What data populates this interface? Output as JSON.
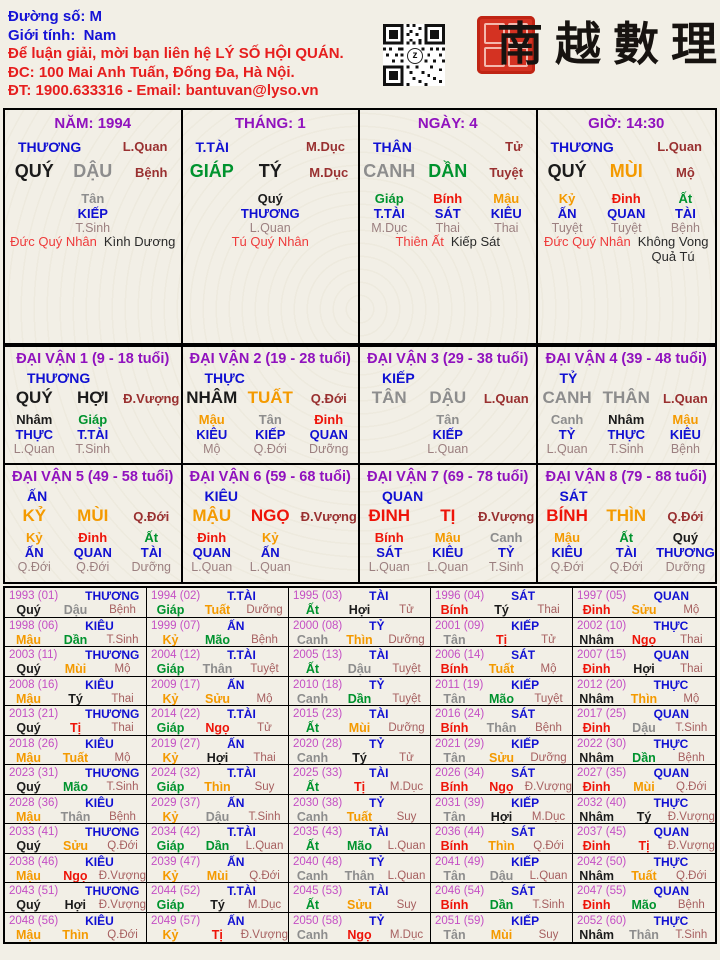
{
  "palette": {
    "black": "#1b1b1b",
    "gray": "#8d8d8d",
    "green": "#00932e",
    "red": "#ee1409",
    "orange": "#f49a00",
    "blue": "#1010d2",
    "purple": "#9012be",
    "magenta": "#c44fc4",
    "darkred": "#993030",
    "hiddenstar": "#9c8080",
    "yearstar": "#a65f5f",
    "notered": "#ee3b3b",
    "headerblue": "#1512d6",
    "headerred": "#e61e1e"
  },
  "header": {
    "duong_so_label": "Đường số:",
    "duong_so_value": "M",
    "gioi_tinh_label": "Giới tính:",
    "gioi_tinh_value": "Nam",
    "contact_line1": "Để luận giải, mời bạn liên hệ LÝ SỐ HỘI QUÁN.",
    "contact_line2": "ĐC: 100 Mai Anh Tuấn, Đống Đa, Hà Nội.",
    "contact_line3": "ĐT: 1900.633316 - Email: bantuvan@lyso.vn",
    "qr_logo": "z",
    "calligraphy": "南越數理"
  },
  "pillars": [
    {
      "title": "NĂM: 1994",
      "god": "THƯƠNG",
      "god_right": "L.Quan",
      "can": "QUÝ",
      "can_color": "black",
      "chi": "DẬU",
      "chi_color": "gray",
      "star": "Bệnh",
      "hidden": [
        {
          "can": "Tân",
          "can_color": "gray",
          "god": "KIẾP",
          "star": "T.Sinh"
        }
      ],
      "note_red": "Đức Quý Nhân",
      "note_black": "Kình Dương"
    },
    {
      "title": "THÁNG: 1",
      "god": "T.TÀI",
      "god_right": "M.Dục",
      "can": "GIÁP",
      "can_color": "green",
      "chi": "TÝ",
      "chi_color": "black",
      "star": "M.Dục",
      "hidden": [
        {
          "can": "Quý",
          "can_color": "black",
          "god": "THƯƠNG",
          "star": "L.Quan"
        }
      ],
      "note_red": "Tú Quý Nhân",
      "note_black": ""
    },
    {
      "title": "NGÀY: 4",
      "god": "THÂN",
      "god_right": "Tử",
      "can": "CANH",
      "can_color": "gray",
      "chi": "DẦN",
      "chi_color": "green",
      "star": "Tuyệt",
      "hidden": [
        {
          "can": "Giáp",
          "can_color": "green",
          "god": "T.TÀI",
          "star": "M.Dục"
        },
        {
          "can": "Bính",
          "can_color": "red",
          "god": "SÁT",
          "star": "Thai"
        },
        {
          "can": "Mậu",
          "can_color": "orange",
          "god": "KIÊU",
          "star": "Thai"
        }
      ],
      "note_red": "Thiên Ất",
      "note_black": "Kiếp Sát"
    },
    {
      "title": "GIỜ: 14:30",
      "god": "THƯƠNG",
      "god_right": "L.Quan",
      "can": "QUÝ",
      "can_color": "black",
      "chi": "MÙI",
      "chi_color": "orange",
      "star": "Mộ",
      "hidden": [
        {
          "can": "Kỷ",
          "can_color": "orange",
          "god": "ẤN",
          "star": "Tuyệt"
        },
        {
          "can": "Đinh",
          "can_color": "red",
          "god": "QUAN",
          "star": "Tuyệt"
        },
        {
          "can": "Ất",
          "can_color": "green",
          "god": "TÀI",
          "star": "Bệnh"
        }
      ],
      "note_red": "Đức Quý Nhân",
      "note_black": "Không Vong\nQuả Tú"
    }
  ],
  "daivan": [
    {
      "title": "ĐẠI VẬN 1 (9 - 18 tuổi)",
      "god": "THƯƠNG",
      "can": "QUÝ",
      "can_color": "black",
      "chi": "HỢI",
      "chi_color": "black",
      "star": "Đ.Vượng",
      "hidden": [
        {
          "can": "Nhâm",
          "can_color": "black",
          "god": "THỰC",
          "star": "L.Quan"
        },
        {
          "can": "Giáp",
          "can_color": "green",
          "god": "T.TÀI",
          "star": "T.Sinh"
        }
      ]
    },
    {
      "title": "ĐẠI VẬN 2 (19 - 28 tuổi)",
      "god": "THỰC",
      "can": "NHÂM",
      "can_color": "black",
      "chi": "TUẤT",
      "chi_color": "orange",
      "star": "Q.Đới",
      "hidden": [
        {
          "can": "Mậu",
          "can_color": "orange",
          "god": "KIÊU",
          "star": "Mộ"
        },
        {
          "can": "Tân",
          "can_color": "gray",
          "god": "KIẾP",
          "star": "Q.Đới"
        },
        {
          "can": "Đinh",
          "can_color": "red",
          "god": "QUAN",
          "star": "Dưỡng"
        }
      ]
    },
    {
      "title": "ĐẠI VẬN 3 (29 - 38 tuổi)",
      "god": "KIẾP",
      "can": "TÂN",
      "can_color": "gray",
      "chi": "DẬU",
      "chi_color": "gray",
      "star": "L.Quan",
      "hidden": [
        {
          "can": "Tân",
          "can_color": "gray",
          "god": "KIẾP",
          "star": "L.Quan"
        }
      ]
    },
    {
      "title": "ĐẠI VẬN 4 (39 - 48 tuổi)",
      "god": "TỶ",
      "can": "CANH",
      "can_color": "gray",
      "chi": "THÂN",
      "chi_color": "gray",
      "star": "L.Quan",
      "hidden": [
        {
          "can": "Canh",
          "can_color": "gray",
          "god": "TỶ",
          "star": "L.Quan"
        },
        {
          "can": "Nhâm",
          "can_color": "black",
          "god": "THỰC",
          "star": "T.Sinh"
        },
        {
          "can": "Mậu",
          "can_color": "orange",
          "god": "KIÊU",
          "star": "Bệnh"
        }
      ]
    },
    {
      "title": "ĐẠI VẬN 5 (49 - 58 tuổi)",
      "god": "ẤN",
      "can": "KỶ",
      "can_color": "orange",
      "chi": "MÙI",
      "chi_color": "orange",
      "star": "Q.Đới",
      "hidden": [
        {
          "can": "Kỷ",
          "can_color": "orange",
          "god": "ẤN",
          "star": "Q.Đới"
        },
        {
          "can": "Đinh",
          "can_color": "red",
          "god": "QUAN",
          "star": "Q.Đới"
        },
        {
          "can": "Ất",
          "can_color": "green",
          "god": "TÀI",
          "star": "Dưỡng"
        }
      ]
    },
    {
      "title": "ĐẠI VẬN 6 (59 - 68 tuổi)",
      "god": "KIÊU",
      "can": "MẬU",
      "can_color": "orange",
      "chi": "NGỌ",
      "chi_color": "red",
      "star": "Đ.Vượng",
      "hidden": [
        {
          "can": "Đinh",
          "can_color": "red",
          "god": "QUAN",
          "star": "L.Quan"
        },
        {
          "can": "Kỷ",
          "can_color": "orange",
          "god": "ẤN",
          "star": "L.Quan"
        }
      ]
    },
    {
      "title": "ĐẠI VẬN 7 (69 - 78 tuổi)",
      "god": "QUAN",
      "can": "ĐINH",
      "can_color": "red",
      "chi": "TỊ",
      "chi_color": "red",
      "star": "Đ.Vượng",
      "hidden": [
        {
          "can": "Bính",
          "can_color": "red",
          "god": "SÁT",
          "star": "L.Quan"
        },
        {
          "can": "Mậu",
          "can_color": "orange",
          "god": "KIÊU",
          "star": "L.Quan"
        },
        {
          "can": "Canh",
          "can_color": "gray",
          "god": "TỶ",
          "star": "T.Sinh"
        }
      ]
    },
    {
      "title": "ĐẠI VẬN 8 (79 - 88 tuổi)",
      "god": "SÁT",
      "can": "BÍNH",
      "can_color": "red",
      "chi": "THÌN",
      "chi_color": "orange",
      "star": "Q.Đới",
      "hidden": [
        {
          "can": "Mậu",
          "can_color": "orange",
          "god": "KIÊU",
          "star": "Q.Đới"
        },
        {
          "can": "Ất",
          "can_color": "green",
          "god": "TÀI",
          "star": "Q.Đới"
        },
        {
          "can": "Quý",
          "can_color": "black",
          "god": "THƯƠNG",
          "star": "Dưỡng"
        }
      ]
    }
  ],
  "stem_colors": {
    "Giáp": "green",
    "Ất": "green",
    "Bính": "red",
    "Đinh": "red",
    "Mậu": "orange",
    "Kỷ": "orange",
    "Canh": "gray",
    "Tân": "gray",
    "Nhâm": "black",
    "Quý": "black"
  },
  "branch_colors": {
    "Tý": "black",
    "Sửu": "orange",
    "Dần": "green",
    "Mão": "green",
    "Thìn": "orange",
    "Tị": "red",
    "Ngọ": "red",
    "Mùi": "orange",
    "Thân": "gray",
    "Dậu": "gray",
    "Tuất": "orange",
    "Hợi": "black"
  },
  "years": [
    [
      "1993 (01)",
      "THƯƠNG",
      "Quý",
      "Dậu",
      "Bệnh"
    ],
    [
      "1994 (02)",
      "T.TÀI",
      "Giáp",
      "Tuất",
      "Dưỡng"
    ],
    [
      "1995 (03)",
      "TÀI",
      "Ất",
      "Hợi",
      "Tử"
    ],
    [
      "1996 (04)",
      "SÁT",
      "Bính",
      "Tý",
      "Thai"
    ],
    [
      "1997 (05)",
      "QUAN",
      "Đinh",
      "Sửu",
      "Mộ"
    ],
    [
      "1998 (06)",
      "KIÊU",
      "Mậu",
      "Dần",
      "T.Sinh"
    ],
    [
      "1999 (07)",
      "ẤN",
      "Kỷ",
      "Mão",
      "Bệnh"
    ],
    [
      "2000 (08)",
      "TỶ",
      "Canh",
      "Thìn",
      "Dưỡng"
    ],
    [
      "2001 (09)",
      "KIẾP",
      "Tân",
      "Tị",
      "Tử"
    ],
    [
      "2002 (10)",
      "THỰC",
      "Nhâm",
      "Ngọ",
      "Thai"
    ],
    [
      "2003 (11)",
      "THƯƠNG",
      "Quý",
      "Mùi",
      "Mộ"
    ],
    [
      "2004 (12)",
      "T.TÀI",
      "Giáp",
      "Thân",
      "Tuyệt"
    ],
    [
      "2005 (13)",
      "TÀI",
      "Ất",
      "Dậu",
      "Tuyệt"
    ],
    [
      "2006 (14)",
      "SÁT",
      "Bính",
      "Tuất",
      "Mộ"
    ],
    [
      "2007 (15)",
      "QUAN",
      "Đinh",
      "Hợi",
      "Thai"
    ],
    [
      "2008 (16)",
      "KIÊU",
      "Mậu",
      "Tý",
      "Thai"
    ],
    [
      "2009 (17)",
      "ẤN",
      "Kỷ",
      "Sửu",
      "Mộ"
    ],
    [
      "2010 (18)",
      "TỶ",
      "Canh",
      "Dần",
      "Tuyệt"
    ],
    [
      "2011 (19)",
      "KIẾP",
      "Tân",
      "Mão",
      "Tuyệt"
    ],
    [
      "2012 (20)",
      "THỰC",
      "Nhâm",
      "Thìn",
      "Mộ"
    ],
    [
      "2013 (21)",
      "THƯƠNG",
      "Quý",
      "Tị",
      "Thai"
    ],
    [
      "2014 (22)",
      "T.TÀI",
      "Giáp",
      "Ngọ",
      "Tử"
    ],
    [
      "2015 (23)",
      "TÀI",
      "Ất",
      "Mùi",
      "Dưỡng"
    ],
    [
      "2016 (24)",
      "SÁT",
      "Bính",
      "Thân",
      "Bệnh"
    ],
    [
      "2017 (25)",
      "QUAN",
      "Đinh",
      "Dậu",
      "T.Sinh"
    ],
    [
      "2018 (26)",
      "KIÊU",
      "Mậu",
      "Tuất",
      "Mộ"
    ],
    [
      "2019 (27)",
      "ẤN",
      "Kỷ",
      "Hợi",
      "Thai"
    ],
    [
      "2020 (28)",
      "TỶ",
      "Canh",
      "Tý",
      "Tử"
    ],
    [
      "2021 (29)",
      "KIẾP",
      "Tân",
      "Sửu",
      "Dưỡng"
    ],
    [
      "2022 (30)",
      "THỰC",
      "Nhâm",
      "Dần",
      "Bệnh"
    ],
    [
      "2023 (31)",
      "THƯƠNG",
      "Quý",
      "Mão",
      "T.Sinh"
    ],
    [
      "2024 (32)",
      "T.TÀI",
      "Giáp",
      "Thìn",
      "Suy"
    ],
    [
      "2025 (33)",
      "TÀI",
      "Ất",
      "Tị",
      "M.Dục"
    ],
    [
      "2026 (34)",
      "SÁT",
      "Bính",
      "Ngọ",
      "Đ.Vượng"
    ],
    [
      "2027 (35)",
      "QUAN",
      "Đinh",
      "Mùi",
      "Q.Đới"
    ],
    [
      "2028 (36)",
      "KIÊU",
      "Mậu",
      "Thân",
      "Bệnh"
    ],
    [
      "2029 (37)",
      "ẤN",
      "Kỷ",
      "Dậu",
      "T.Sinh"
    ],
    [
      "2030 (38)",
      "TỶ",
      "Canh",
      "Tuất",
      "Suy"
    ],
    [
      "2031 (39)",
      "KIẾP",
      "Tân",
      "Hợi",
      "M.Dục"
    ],
    [
      "2032 (40)",
      "THỰC",
      "Nhâm",
      "Tý",
      "Đ.Vượng"
    ],
    [
      "2033 (41)",
      "THƯƠNG",
      "Quý",
      "Sửu",
      "Q.Đới"
    ],
    [
      "2034 (42)",
      "T.TÀI",
      "Giáp",
      "Dần",
      "L.Quan"
    ],
    [
      "2035 (43)",
      "TÀI",
      "Ất",
      "Mão",
      "L.Quan"
    ],
    [
      "2036 (44)",
      "SÁT",
      "Bính",
      "Thìn",
      "Q.Đới"
    ],
    [
      "2037 (45)",
      "QUAN",
      "Đinh",
      "Tị",
      "Đ.Vượng"
    ],
    [
      "2038 (46)",
      "KIÊU",
      "Mậu",
      "Ngọ",
      "Đ.Vượng"
    ],
    [
      "2039 (47)",
      "ẤN",
      "Kỷ",
      "Mùi",
      "Q.Đới"
    ],
    [
      "2040 (48)",
      "TỶ",
      "Canh",
      "Thân",
      "L.Quan"
    ],
    [
      "2041 (49)",
      "KIẾP",
      "Tân",
      "Dậu",
      "L.Quan"
    ],
    [
      "2042 (50)",
      "THỰC",
      "Nhâm",
      "Tuất",
      "Q.Đới"
    ],
    [
      "2043 (51)",
      "THƯƠNG",
      "Quý",
      "Hợi",
      "Đ.Vượng"
    ],
    [
      "2044 (52)",
      "T.TÀI",
      "Giáp",
      "Tý",
      "M.Dục"
    ],
    [
      "2045 (53)",
      "TÀI",
      "Ất",
      "Sửu",
      "Suy"
    ],
    [
      "2046 (54)",
      "SÁT",
      "Bính",
      "Dần",
      "T.Sinh"
    ],
    [
      "2047 (55)",
      "QUAN",
      "Đinh",
      "Mão",
      "Bệnh"
    ],
    [
      "2048 (56)",
      "KIÊU",
      "Mậu",
      "Thìn",
      "Q.Đới"
    ],
    [
      "2049 (57)",
      "ẤN",
      "Kỷ",
      "Tị",
      "Đ.Vượng"
    ],
    [
      "2050 (58)",
      "TỶ",
      "Canh",
      "Ngọ",
      "M.Dục"
    ],
    [
      "2051 (59)",
      "KIẾP",
      "Tân",
      "Mùi",
      "Suy"
    ],
    [
      "2052 (60)",
      "THỰC",
      "Nhâm",
      "Thân",
      "T.Sinh"
    ]
  ]
}
